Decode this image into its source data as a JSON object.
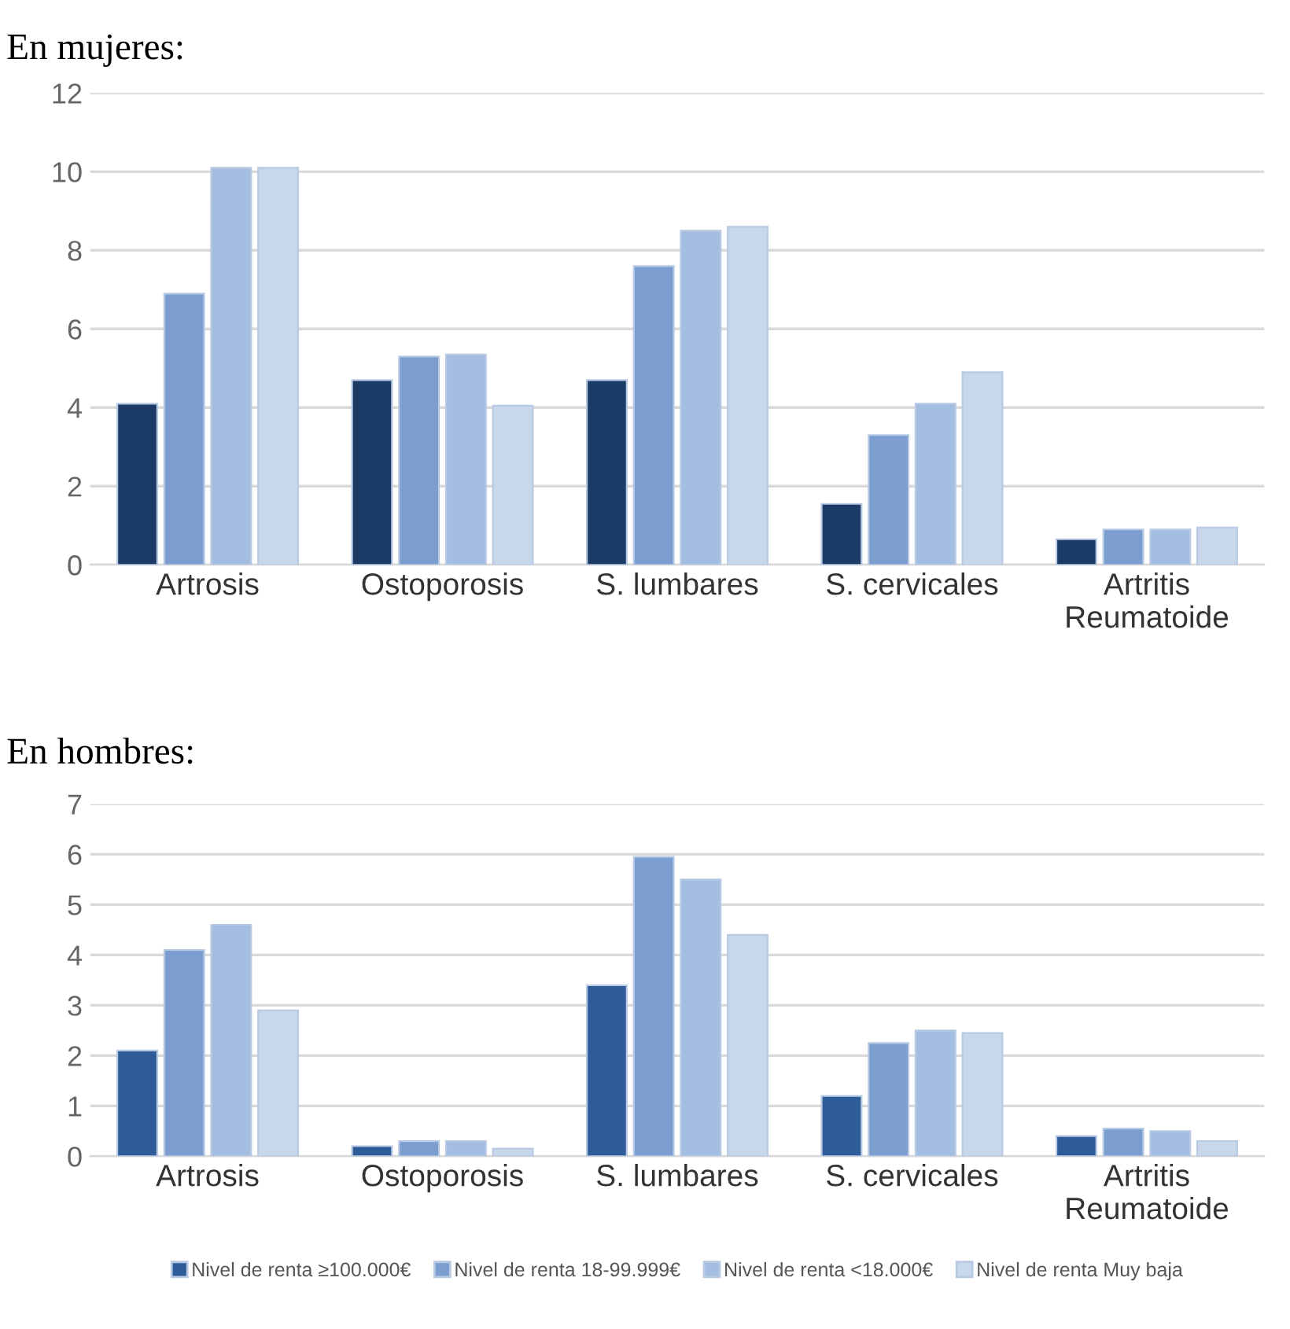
{
  "chart_data": [
    {
      "type": "bar",
      "title": "En mujeres:",
      "categories": [
        "Artrosis",
        "Ostoporosis",
        "S. lumbares",
        "S. cervicales",
        "Artritis\nReumatoide"
      ],
      "series": [
        {
          "color": "#1b3a66",
          "values": [
            4.1,
            4.7,
            4.7,
            1.55,
            0.65
          ]
        },
        {
          "color": "#7b9dcf",
          "values": [
            6.9,
            5.3,
            7.6,
            3.3,
            0.9
          ]
        },
        {
          "color": "#a4bee1",
          "values": [
            10.1,
            5.35,
            8.5,
            4.1,
            0.9
          ]
        },
        {
          "color": "#c9d7eb",
          "values": [
            10.1,
            4.05,
            8.6,
            4.9,
            0.95
          ]
        }
      ],
      "ylim": [
        0,
        12
      ],
      "yticks": [
        0,
        2,
        4,
        6,
        8,
        10,
        12
      ],
      "grid": "y"
    },
    {
      "type": "bar",
      "title": "En hombres:",
      "categories": [
        "Artrosis",
        "Ostoporosis",
        "S. lumbares",
        "S. cervicales",
        "Artritis\nReumatoide"
      ],
      "series": [
        {
          "name": "Nivel de renta ≥100.000€",
          "color": "#2e5c99",
          "values": [
            2.1,
            0.2,
            3.4,
            1.2,
            0.4
          ]
        },
        {
          "name": "Nivel de renta 18-99.999€",
          "color": "#7b9dcf",
          "values": [
            4.1,
            0.3,
            5.95,
            2.25,
            0.55
          ]
        },
        {
          "name": "Nivel de renta <18.000€",
          "color": "#a4bee1",
          "values": [
            4.6,
            0.3,
            5.5,
            2.5,
            0.5
          ]
        },
        {
          "name": "Nivel de renta Muy baja",
          "color": "#c9d7eb",
          "values": [
            2.9,
            0.15,
            4.4,
            2.45,
            0.3
          ]
        }
      ],
      "ylim": [
        0,
        7
      ],
      "yticks": [
        0,
        1,
        2,
        3,
        4,
        5,
        6,
        7
      ],
      "grid": "y",
      "legend": "bottom"
    }
  ]
}
